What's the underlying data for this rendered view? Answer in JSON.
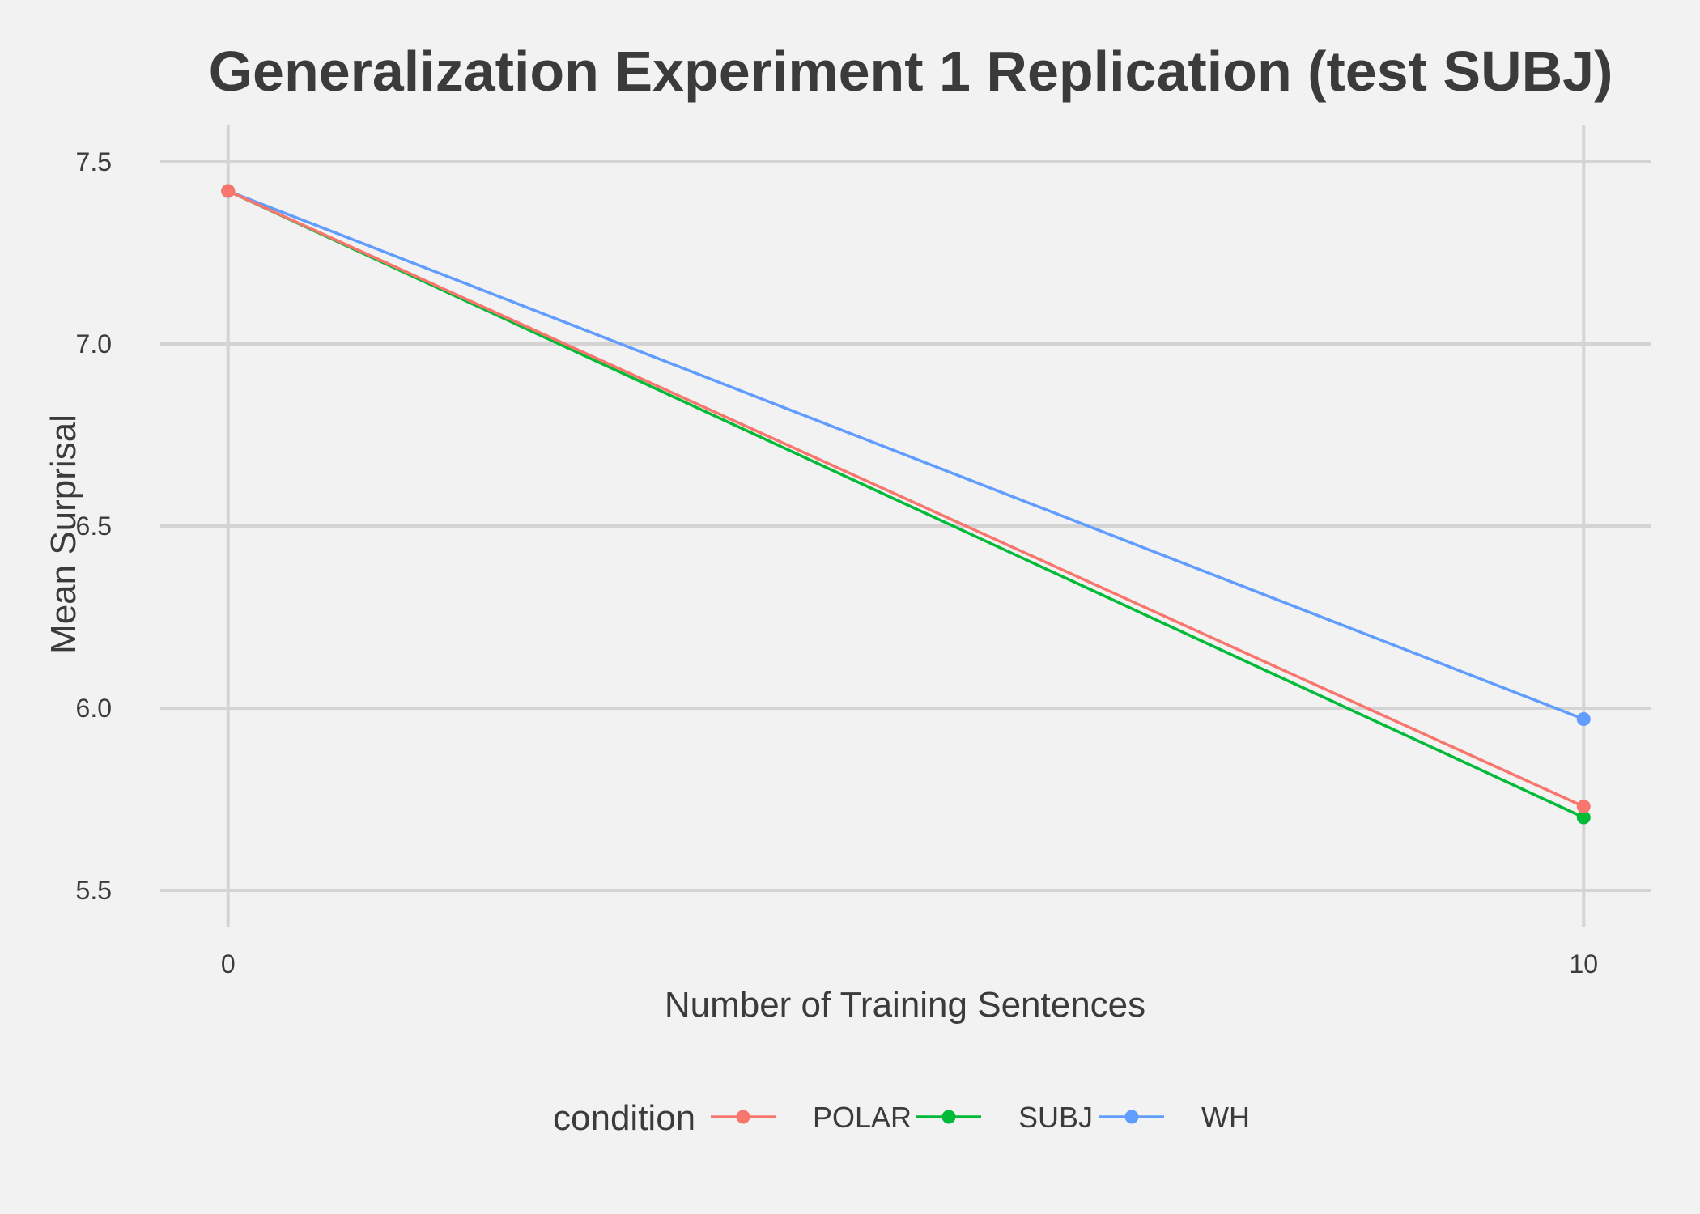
{
  "chart_data": {
    "type": "line",
    "title": "Generalization Experiment 1 Replication (test SUBJ)",
    "xlabel": "Number of Training Sentences",
    "ylabel": "Mean Surprisal",
    "x": [
      0,
      10
    ],
    "xticks": [
      0,
      10
    ],
    "xtick_labels": [
      "0",
      "10"
    ],
    "xlim": [
      -0.5,
      10.5
    ],
    "yticks": [
      5.5,
      6.0,
      6.5,
      7.0,
      7.5
    ],
    "ytick_labels": [
      "5.5",
      "6.0",
      "6.5",
      "7.0",
      "7.5"
    ],
    "ylim": [
      5.4,
      7.6
    ],
    "grid": true,
    "legend": {
      "title": "condition",
      "position": "bottom"
    },
    "series": [
      {
        "name": "POLAR",
        "color": "#f8766d",
        "values": [
          7.42,
          5.73
        ]
      },
      {
        "name": "SUBJ",
        "color": "#00ba38",
        "values": [
          7.42,
          5.7
        ]
      },
      {
        "name": "WH",
        "color": "#619cff",
        "values": [
          7.42,
          5.97
        ]
      }
    ],
    "draw_order": [
      "SUBJ",
      "WH",
      "POLAR"
    ]
  }
}
